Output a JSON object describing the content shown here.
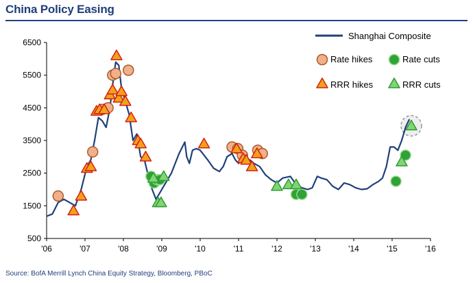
{
  "header": {
    "title": "China Policy Easing"
  },
  "footer": {
    "source": "Source: BofA Merrill Lynch China Equity Strategy, Bloomberg, PBoC"
  },
  "colors": {
    "title": "#1f3f7a",
    "line": "#1f3f7a",
    "rate_hike": "#f2b08a",
    "rate_hike_edge": "#a85a2a",
    "rrr_hike": "#f2a11c",
    "rrr_hike_edge": "#d42010",
    "rate_cut": "#2fa336",
    "rate_cut_edge": "#9ad88e",
    "rrr_cut": "#7fd672",
    "rrr_cut_edge": "#2f9a36",
    "highlight": "#c8c8c8"
  },
  "chart_data": {
    "type": "line",
    "title": "China Policy Easing",
    "xlabel": "",
    "ylabel": "",
    "xlim": [
      2006.0,
      2016.0
    ],
    "ylim": [
      500,
      6500
    ],
    "x_ticks": [
      "'06",
      "'07",
      "'08",
      "'09",
      "'10",
      "'11",
      "'12",
      "'13",
      "'14",
      "'15",
      "'16"
    ],
    "y_ticks": [
      "6500",
      "5500",
      "4500",
      "3500",
      "2500",
      "1500",
      "500"
    ],
    "grid": false,
    "legend_position": "top-right",
    "series": [
      {
        "name": "Shanghai Composite",
        "x": [
          2006.0,
          2006.15,
          2006.3,
          2006.45,
          2006.6,
          2006.75,
          2006.9,
          2007.05,
          2007.15,
          2007.25,
          2007.35,
          2007.45,
          2007.55,
          2007.65,
          2007.75,
          2007.8,
          2007.88,
          2007.95,
          2008.05,
          2008.15,
          2008.25,
          2008.35,
          2008.45,
          2008.55,
          2008.65,
          2008.75,
          2008.85,
          2008.95,
          2009.05,
          2009.15,
          2009.25,
          2009.35,
          2009.45,
          2009.6,
          2009.65,
          2009.72,
          2009.8,
          2009.9,
          2010.0,
          2010.1,
          2010.2,
          2010.35,
          2010.5,
          2010.6,
          2010.7,
          2010.83,
          2010.92,
          2011.0,
          2011.15,
          2011.3,
          2011.4,
          2011.55,
          2011.7,
          2011.85,
          2012.0,
          2012.15,
          2012.35,
          2012.5,
          2012.65,
          2012.8,
          2012.92,
          2013.05,
          2013.15,
          2013.3,
          2013.45,
          2013.6,
          2013.75,
          2013.9,
          2014.05,
          2014.2,
          2014.35,
          2014.5,
          2014.65,
          2014.75,
          2014.85,
          2014.95,
          2015.05,
          2015.15,
          2015.25,
          2015.35,
          2015.45
        ],
        "values": [
          1180,
          1250,
          1600,
          1700,
          1600,
          1500,
          2000,
          2700,
          2900,
          3500,
          4200,
          4100,
          3900,
          4500,
          5500,
          5900,
          5800,
          5100,
          4700,
          4300,
          3500,
          3700,
          3000,
          2900,
          2400,
          2000,
          1700,
          1900,
          2100,
          2300,
          2500,
          2800,
          3100,
          3450,
          3000,
          2800,
          3200,
          3250,
          3200,
          3050,
          2900,
          2650,
          2550,
          2700,
          3000,
          3100,
          2900,
          2800,
          2950,
          2900,
          2800,
          2700,
          2450,
          2300,
          2200,
          2350,
          2400,
          2150,
          2050,
          2000,
          2050,
          2400,
          2350,
          2300,
          2100,
          2000,
          2200,
          2150,
          2050,
          2000,
          2020,
          2150,
          2250,
          2350,
          2700,
          3300,
          3300,
          3200,
          3500,
          3900,
          4150
        ]
      }
    ],
    "events": {
      "rate_hikes": {
        "name": "Rate hikes",
        "x": [
          2006.3,
          2007.2,
          2007.45,
          2007.6,
          2007.72,
          2007.8,
          2008.13,
          2010.83,
          2010.98,
          2011.1,
          2011.5,
          2011.62
        ],
        "y": [
          1800,
          3150,
          4450,
          4500,
          5500,
          5550,
          5650,
          3300,
          3250,
          3050,
          3200,
          3100
        ]
      },
      "rrr_hikes": {
        "name": "RRR hikes",
        "x": [
          2006.7,
          2006.9,
          2007.05,
          2007.15,
          2007.3,
          2007.38,
          2007.5,
          2007.65,
          2007.72,
          2007.82,
          2007.88,
          2007.95,
          2008.05,
          2008.2,
          2008.38,
          2008.45,
          2008.58,
          2010.1,
          2010.95,
          2011.12,
          2011.2,
          2011.35,
          2011.48
        ],
        "y": [
          1350,
          1800,
          2650,
          2700,
          4400,
          4450,
          4450,
          4900,
          5050,
          6100,
          4800,
          5000,
          4700,
          4200,
          3500,
          3400,
          3000,
          3400,
          3250,
          2950,
          2900,
          2700,
          3100
        ]
      },
      "rate_cuts": {
        "name": "Rate cuts",
        "x": [
          2008.72,
          2008.8,
          2008.88,
          2008.95,
          2012.5,
          2012.65,
          2015.1,
          2015.35
        ],
        "y": [
          2400,
          2200,
          2300,
          2300,
          1850,
          1850,
          2250,
          3050
        ]
      },
      "rrr_cuts": {
        "name": "RRR cuts",
        "x": [
          2008.78,
          2008.9,
          2008.98,
          2009.05,
          2012.0,
          2012.3,
          2012.5,
          2015.25,
          2015.5
        ],
        "y": [
          2350,
          1600,
          1600,
          2400,
          2100,
          2150,
          2150,
          2850,
          3950
        ]
      },
      "highlight": {
        "x": 2015.5,
        "y": 3950
      }
    }
  }
}
